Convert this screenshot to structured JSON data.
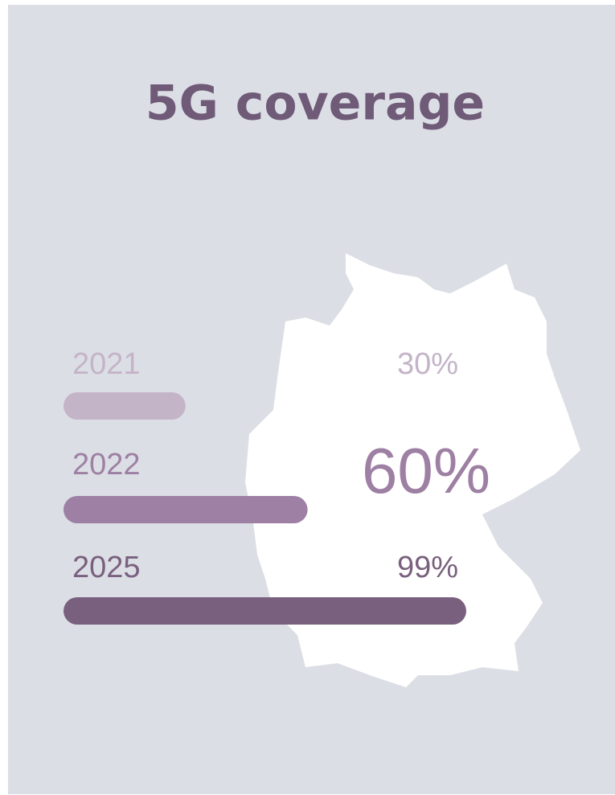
{
  "chart_data": {
    "type": "bar",
    "title": "5G coverage",
    "categories": [
      "2021",
      "2022",
      "2025"
    ],
    "values": [
      30,
      60,
      99
    ],
    "value_labels": [
      "30%",
      "60%",
      "99%"
    ],
    "colors": [
      "#c4b4c8",
      "#9d80a3",
      "#79607e"
    ],
    "xlim": [
      0,
      100
    ]
  }
}
